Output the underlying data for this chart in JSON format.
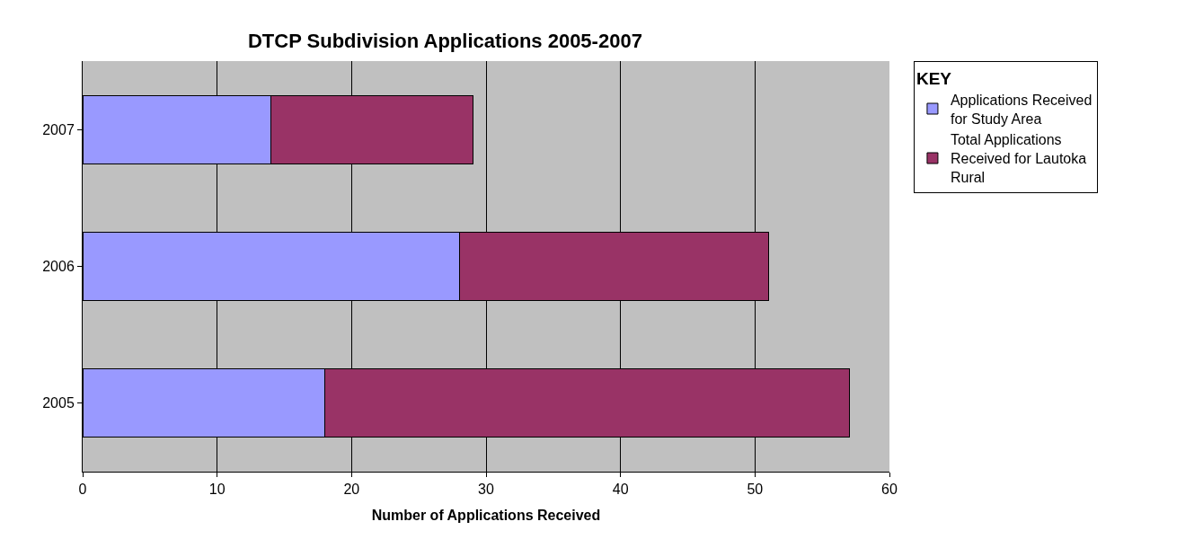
{
  "chart_data": {
    "type": "bar",
    "orientation": "horizontal",
    "stacked": true,
    "title": "DTCP Subdivision Applications 2005-2007",
    "xlabel": "Number of Applications Received",
    "legend_title": "KEY",
    "categories": [
      "2007",
      "2006",
      "2005"
    ],
    "series": [
      {
        "name": "Applications Received for Study Area",
        "color": "#9999ff",
        "values": [
          14,
          28,
          18
        ]
      },
      {
        "name": "Total Applications Received for Lautoka Rural",
        "color": "#993366",
        "values": [
          15,
          23,
          39
        ]
      }
    ],
    "xlim": [
      0,
      60
    ],
    "xticks": [
      0,
      10,
      20,
      30,
      40,
      50,
      60
    ],
    "grid": "x",
    "legend": "top right"
  }
}
